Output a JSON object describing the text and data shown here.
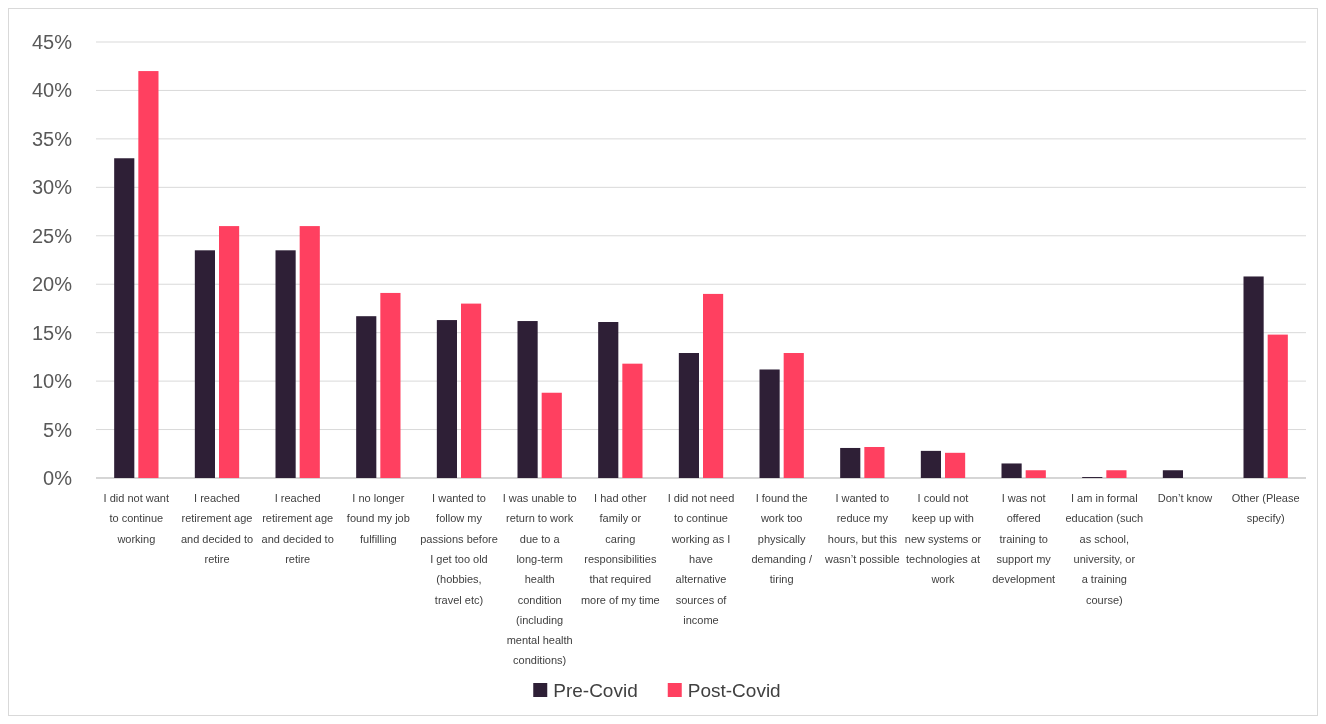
{
  "chart_data": {
    "type": "bar",
    "categories": [
      "I did not want to continue working",
      "I reached retirement age and decided to retire",
      "I reached retirement age and decided to retire",
      "I no longer found my job fulfilling",
      "I wanted to follow my passions before I get too old (hobbies, travel etc)",
      "I was unable to return to work due to a long-term health condition (including mental health conditions)",
      "I had other family or caring responsibilities that required more of my time",
      "I did not need to continue working as I have alternative sources of income",
      "I found the work too physically demanding / tiring",
      "I wanted to reduce my hours, but this wasn’t possible",
      "I could not keep up with new systems or technologies at work",
      "I was not offered training to support my development",
      "I am in formal education (such as school, university, or a training course)",
      "Don’t know",
      "Other (Please specify)"
    ],
    "series": [
      {
        "name": "Pre-Covid",
        "color": "#2e1f36",
        "values": [
          33,
          23.5,
          23.5,
          16.7,
          16.3,
          16.2,
          16.1,
          12.9,
          11.2,
          3.1,
          2.8,
          1.5,
          0.1,
          0.8,
          20.8
        ]
      },
      {
        "name": "Post-Covid",
        "color": "#ff4060",
        "values": [
          42,
          26,
          26,
          19.1,
          18,
          8.8,
          11.8,
          19,
          12.9,
          3.2,
          2.6,
          0.8,
          0.8,
          0,
          14.8
        ]
      }
    ],
    "ylim": [
      0,
      45
    ],
    "yticks": [
      {
        "value": 0,
        "label": "0%"
      },
      {
        "value": 5,
        "label": "5%"
      },
      {
        "value": 10,
        "label": "10%"
      },
      {
        "value": 15,
        "label": "15%"
      },
      {
        "value": 20,
        "label": "20%"
      },
      {
        "value": 25,
        "label": "25%"
      },
      {
        "value": 30,
        "label": "30%"
      },
      {
        "value": 35,
        "label": "35%"
      },
      {
        "value": 40,
        "label": "40%"
      },
      {
        "value": 45,
        "label": "45%"
      }
    ],
    "grid": "y",
    "legend": "bottom"
  }
}
